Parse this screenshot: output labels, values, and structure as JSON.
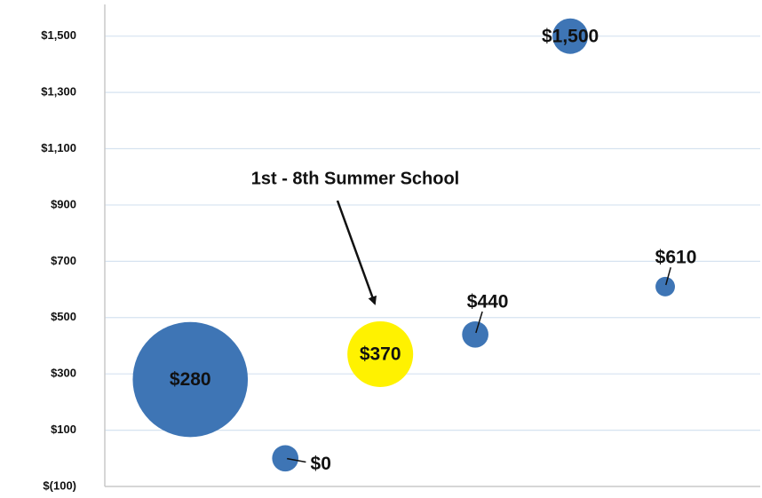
{
  "chart_data": {
    "type": "bubble",
    "annotation": "1st - 8th Summer School",
    "x": [
      1,
      2,
      3,
      4,
      5,
      6
    ],
    "values": [
      280,
      0,
      370,
      440,
      1500,
      610
    ],
    "value_labels": [
      "$280",
      "$0",
      "$370",
      "$440",
      "$1,500",
      "$610"
    ],
    "sizes": [
      4200,
      220,
      1370,
      220,
      400,
      120
    ],
    "colors": [
      "#3e75b5",
      "#3e75b5",
      "#fff200",
      "#3e75b5",
      "#3e75b5",
      "#3e75b5"
    ],
    "xlim": [
      0.1,
      7
    ],
    "ylim": [
      -100,
      1600
    ],
    "yticks": [
      {
        "value": -100,
        "label": "$(100)"
      },
      {
        "value": 100,
        "label": "$100"
      },
      {
        "value": 300,
        "label": "$300"
      },
      {
        "value": 500,
        "label": "$500"
      },
      {
        "value": 700,
        "label": "$700"
      },
      {
        "value": 900,
        "label": "$900"
      },
      {
        "value": 1100,
        "label": "$1,100"
      },
      {
        "value": 1300,
        "label": "$1,300"
      },
      {
        "value": 1500,
        "label": "$1,500"
      }
    ],
    "grid": true
  }
}
